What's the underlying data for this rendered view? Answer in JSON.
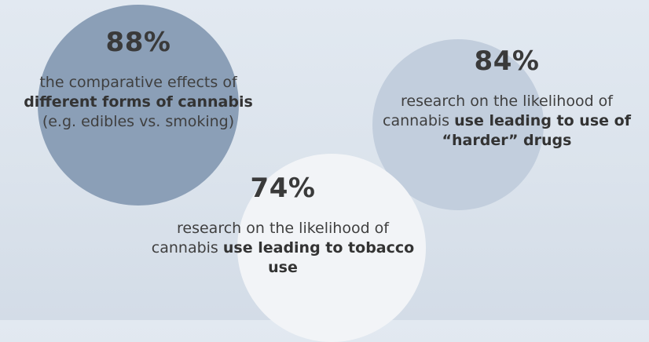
{
  "chart_data": {
    "type": "bubble",
    "unit": "%",
    "items": [
      {
        "value": 88,
        "value_label": "88%",
        "desc_pre": "the comparative effects of",
        "desc_bold": "different forms of cannabis",
        "desc_post": "(e.g. edibles vs. smoking)",
        "color": "#8b9fb7"
      },
      {
        "value": 84,
        "value_label": "84%",
        "desc_pre": "research on the likelihood of cannabis",
        "desc_bold": "use leading to use of “harder” drugs",
        "desc_post": "",
        "color": "#c2cedd"
      },
      {
        "value": 74,
        "value_label": "74%",
        "desc_pre": "research on the likelihood of cannabis",
        "desc_bold": "use leading to tobacco use",
        "desc_post": "",
        "color": "#f2f4f7"
      }
    ]
  }
}
